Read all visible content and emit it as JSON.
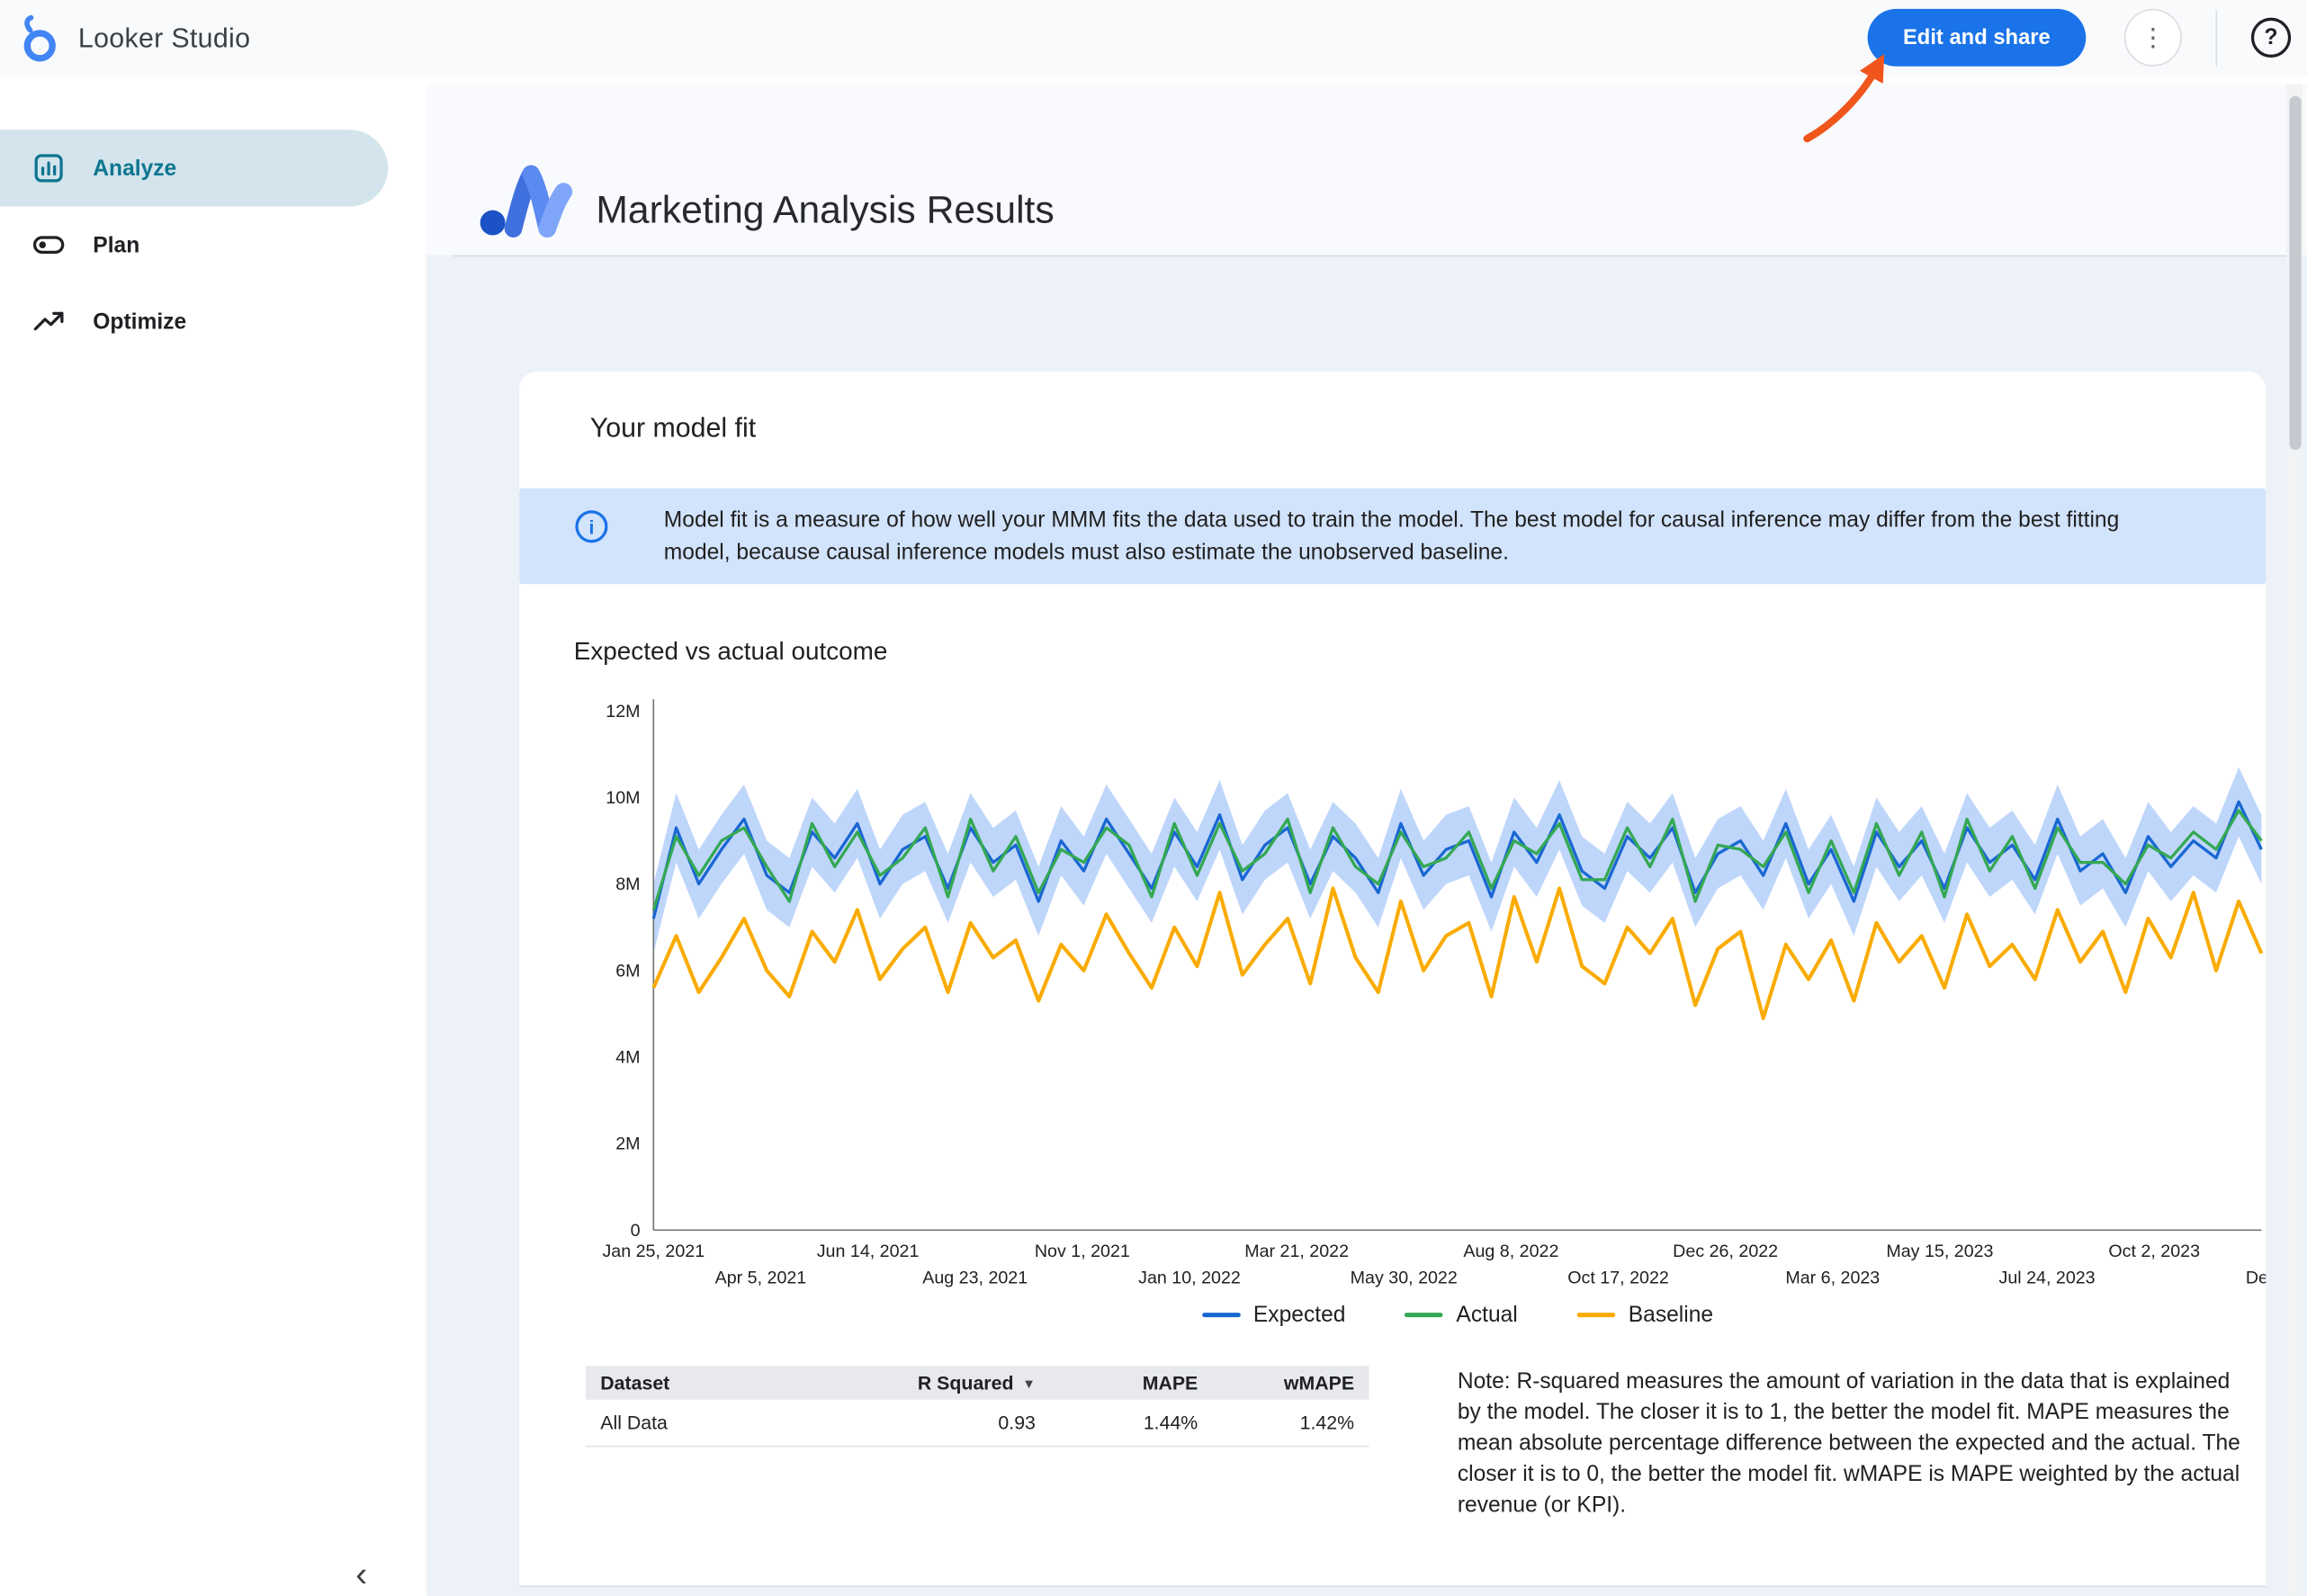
{
  "topbar": {
    "app_name": "Looker Studio",
    "edit_share_label": "Edit and share"
  },
  "icons": {
    "more": "⋮",
    "help": "?",
    "collapse": "‹",
    "info": "i",
    "sort_desc": "▼"
  },
  "sidebar": {
    "items": [
      {
        "label": "Analyze",
        "active": true
      },
      {
        "label": "Plan",
        "active": false
      },
      {
        "label": "Optimize",
        "active": false
      }
    ]
  },
  "report": {
    "title": "Marketing Analysis Results",
    "section": {
      "heading": "Your model fit",
      "info_banner": "Model fit is a measure of how well your MMM fits the data used to train the model. The best model for causal inference may differ from the best fitting model, because causal inference models must also estimate the unobserved baseline.",
      "note": "Note: R-squared measures the amount of variation in the data that is explained by the model. The closer it is to 1, the better the model fit. MAPE measures the mean absolute percentage difference between the expected and the actual. The closer it is to 0, the better the model fit. wMAPE is MAPE weighted by the actual revenue (or KPI)."
    },
    "table": {
      "columns": [
        "Dataset",
        "R Squared",
        "MAPE",
        "wMAPE"
      ],
      "sorted_column": "R Squared",
      "rows": [
        [
          "All Data",
          "0.93",
          "1.44%",
          "1.42%"
        ]
      ]
    }
  },
  "chart_data": {
    "type": "line",
    "title": "Expected vs actual outcome",
    "unit": "millions",
    "ylim": [
      0,
      12
    ],
    "yticks": [
      "0",
      "2M",
      "4M",
      "6M",
      "8M",
      "10M",
      "12M"
    ],
    "xticks": [
      "Jan 25, 2021",
      "Apr 5, 2021",
      "Jun 14, 2021",
      "Aug 23, 2021",
      "Nov 1, 2021",
      "Jan 10, 2022",
      "Mar 21, 2022",
      "May 30, 2022",
      "Aug 8, 2022",
      "Oct 17, 2022",
      "Dec 26, 2022",
      "Mar 6, 2023",
      "May 15, 2023",
      "Jul 24, 2023",
      "Oct 2, 2023",
      "Dec"
    ],
    "grid": false,
    "legend_position": "bottom",
    "series": [
      {
        "name": "Expected",
        "color": "#1967d2",
        "values": [
          7.2,
          9.3,
          8.0,
          8.8,
          9.5,
          8.2,
          7.8,
          9.2,
          8.6,
          9.4,
          8.0,
          8.8,
          9.1,
          7.9,
          9.3,
          8.5,
          8.9,
          7.6,
          9.0,
          8.3,
          9.5,
          8.7,
          7.9,
          9.2,
          8.4,
          9.6,
          8.1,
          8.9,
          9.3,
          8.0,
          9.1,
          8.6,
          7.8,
          9.4,
          8.2,
          8.8,
          9.0,
          7.7,
          9.2,
          8.5,
          9.6,
          8.3,
          7.9,
          9.1,
          8.6,
          9.3,
          7.8,
          8.7,
          9.0,
          8.2,
          9.4,
          8.0,
          8.8,
          7.6,
          9.2,
          8.4,
          9.0,
          7.9,
          9.3,
          8.5,
          8.9,
          8.1,
          9.5,
          8.3,
          8.7,
          7.8,
          9.1,
          8.4,
          9.0,
          8.6,
          9.9,
          8.8
        ]
      },
      {
        "name": "Actual",
        "color": "#34a853",
        "values": [
          7.4,
          9.1,
          8.2,
          9.0,
          9.3,
          8.4,
          7.6,
          9.4,
          8.4,
          9.2,
          8.2,
          8.6,
          9.3,
          7.7,
          9.5,
          8.3,
          9.1,
          7.8,
          8.8,
          8.5,
          9.3,
          8.9,
          7.7,
          9.4,
          8.2,
          9.4,
          8.3,
          8.7,
          9.5,
          7.8,
          9.3,
          8.4,
          8.0,
          9.2,
          8.4,
          8.6,
          9.2,
          7.9,
          9.0,
          8.7,
          9.4,
          8.1,
          8.1,
          9.3,
          8.4,
          9.5,
          7.6,
          8.9,
          8.8,
          8.4,
          9.2,
          7.8,
          9.0,
          7.8,
          9.4,
          8.2,
          9.2,
          7.7,
          9.5,
          8.3,
          9.1,
          7.9,
          9.3,
          8.5,
          8.5,
          8.0,
          8.9,
          8.6,
          9.2,
          8.8,
          9.7,
          9.0
        ]
      },
      {
        "name": "Baseline",
        "color": "#f9ab00",
        "values": [
          5.6,
          6.8,
          5.5,
          6.3,
          7.2,
          6.0,
          5.4,
          6.9,
          6.2,
          7.4,
          5.8,
          6.5,
          7.0,
          5.5,
          7.1,
          6.3,
          6.7,
          5.3,
          6.6,
          6.0,
          7.3,
          6.4,
          5.6,
          7.0,
          6.1,
          7.8,
          5.9,
          6.6,
          7.2,
          5.7,
          7.9,
          6.3,
          5.5,
          7.6,
          6.0,
          6.8,
          7.1,
          5.4,
          7.7,
          6.2,
          7.9,
          6.1,
          5.7,
          7.0,
          6.4,
          7.2,
          5.2,
          6.5,
          6.9,
          4.9,
          6.6,
          5.8,
          6.7,
          5.3,
          7.1,
          6.2,
          6.8,
          5.6,
          7.3,
          6.1,
          6.6,
          5.8,
          7.4,
          6.2,
          6.9,
          5.5,
          7.2,
          6.3,
          7.8,
          6.0,
          7.6,
          6.4
        ]
      }
    ],
    "ci_band": {
      "series": "Expected",
      "halfwidth": 0.8,
      "color": "#8ab4f8",
      "opacity": 0.55
    }
  },
  "annotation": {
    "type": "arrow",
    "target": "Edit and share button",
    "color": "#f0561c"
  },
  "colors": {
    "accent": "#1a73e8",
    "banner_bg": "#d2e3fc",
    "active_nav_bg": "#d3e4ec",
    "active_nav_fg": "#0d7590",
    "annotation_arrow": "#f0561c"
  }
}
